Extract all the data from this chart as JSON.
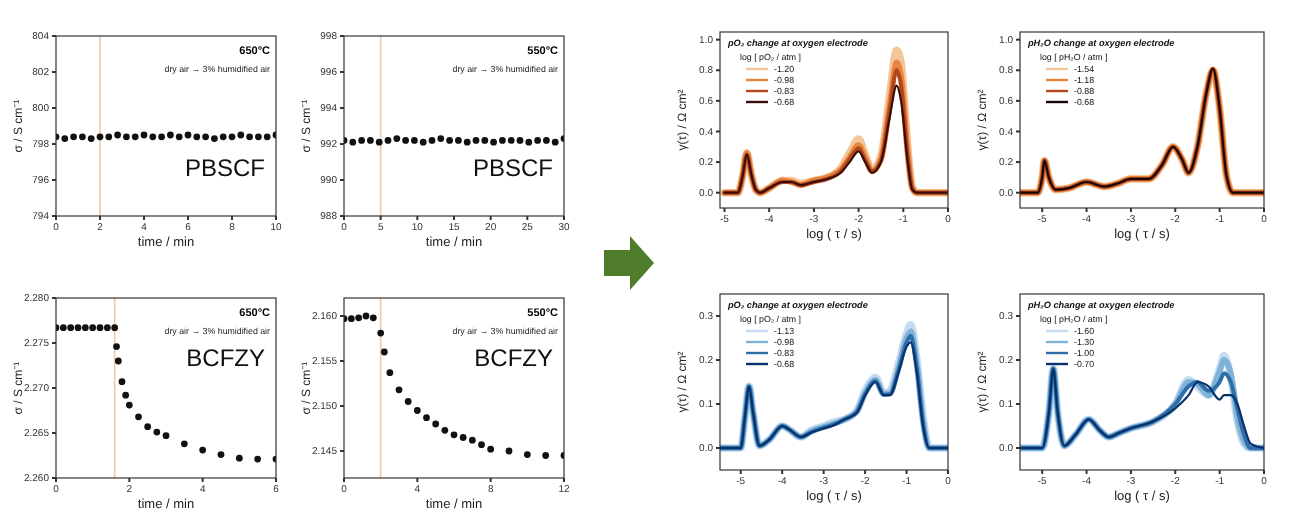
{
  "chart_data": [
    {
      "type": "scatter",
      "xlabel": "time / min",
      "ylabel": "σ / S cm⁻¹",
      "xlim": [
        0,
        10
      ],
      "xticks": [
        0,
        2,
        4,
        6,
        8,
        10
      ],
      "ylim": [
        794,
        804
      ],
      "yticks": [
        794,
        796,
        798,
        800,
        802,
        804
      ],
      "marker": "circle",
      "annotations": [
        "650°C",
        "dry air → 3% humidified air",
        "PBSCF"
      ],
      "ref_lines": [
        {
          "axis": "x",
          "value": 2,
          "color": "#f0c8a0"
        }
      ],
      "x": [
        0,
        0.4,
        0.8,
        1.2,
        1.6,
        2,
        2.4,
        2.8,
        3.2,
        3.6,
        4,
        4.4,
        4.8,
        5.2,
        5.6,
        6,
        6.4,
        6.8,
        7.2,
        7.6,
        8,
        8.4,
        8.8,
        9.2,
        9.6,
        10
      ],
      "series": [
        {
          "color": "#111111",
          "values": [
            798.4,
            798.3,
            798.4,
            798.4,
            798.3,
            798.4,
            798.4,
            798.5,
            798.4,
            798.4,
            798.5,
            798.4,
            798.4,
            798.5,
            798.4,
            798.5,
            798.4,
            798.4,
            798.3,
            798.4,
            798.4,
            798.5,
            798.4,
            798.4,
            798.4,
            798.5
          ]
        }
      ]
    },
    {
      "type": "scatter",
      "xlabel": "time / min",
      "ylabel": "σ / S cm⁻¹",
      "xlim": [
        0,
        30
      ],
      "xticks": [
        0,
        5,
        10,
        15,
        20,
        25,
        30
      ],
      "ylim": [
        988,
        998
      ],
      "yticks": [
        988,
        990,
        992,
        994,
        996,
        998
      ],
      "marker": "circle",
      "annotations": [
        "550°C",
        "dry air → 3% humidified air",
        "PBSCF"
      ],
      "ref_lines": [
        {
          "axis": "x",
          "value": 5,
          "color": "#f0c8a0"
        }
      ],
      "x": [
        0,
        1.2,
        2.4,
        3.6,
        4.8,
        6,
        7.2,
        8.4,
        9.6,
        10.8,
        12,
        13.2,
        14.4,
        15.6,
        16.8,
        18,
        19.2,
        20.4,
        21.6,
        22.8,
        24,
        25.2,
        26.4,
        27.6,
        28.8,
        30
      ],
      "series": [
        {
          "color": "#111111",
          "values": [
            992.2,
            992.1,
            992.2,
            992.2,
            992.1,
            992.2,
            992.3,
            992.2,
            992.2,
            992.1,
            992.2,
            992.3,
            992.2,
            992.2,
            992.1,
            992.2,
            992.2,
            992.1,
            992.2,
            992.2,
            992.2,
            992.1,
            992.2,
            992.2,
            992.1,
            992.3
          ]
        }
      ]
    },
    {
      "type": "line",
      "title": "pO₂ change at oxygen electrode",
      "xlabel": "log ( τ / s)",
      "ylabel": "γ(τ) / Ω cm²",
      "xlim": [
        -5.1,
        0
      ],
      "xticks": [
        -5,
        -4,
        -3,
        -2,
        -1,
        0
      ],
      "ylim": [
        -0.1,
        1.05
      ],
      "yticks": [
        {
          "value": 0,
          "label": "0.0"
        },
        {
          "value": 0.2,
          "label": "0.2"
        },
        {
          "value": 0.4,
          "label": "0.4"
        },
        {
          "value": 0.6,
          "label": "0.6"
        },
        {
          "value": 0.8,
          "label": "0.8"
        },
        {
          "value": 1,
          "label": "1.0"
        }
      ],
      "legend": "top left",
      "legend_title": "log [ pO₂ / atm ]",
      "x": [
        -5,
        -4.7,
        -4.6,
        -4.5,
        -4.4,
        -4.3,
        -4.2,
        -4,
        -3.7,
        -3.5,
        -3.3,
        -3,
        -2.7,
        -2.4,
        -2.2,
        -2,
        -1.85,
        -1.7,
        -1.5,
        -1.3,
        -1.15,
        -1.05,
        -0.9,
        -0.8,
        -0.7,
        0
      ],
      "series": [
        {
          "name": "-1.20",
          "color": "#f5c59a",
          "values": [
            0,
            0,
            0.1,
            0.26,
            0.12,
            0.02,
            0,
            0.03,
            0.08,
            0.08,
            0.06,
            0.08,
            0.1,
            0.16,
            0.26,
            0.35,
            0.25,
            0.15,
            0.24,
            0.65,
            0.93,
            0.85,
            0.3,
            0.04,
            0,
            0
          ]
        },
        {
          "name": "-0.98",
          "color": "#e8843c",
          "values": [
            0,
            0,
            0.1,
            0.26,
            0.12,
            0.02,
            0,
            0.03,
            0.08,
            0.07,
            0.05,
            0.08,
            0.1,
            0.15,
            0.23,
            0.31,
            0.23,
            0.14,
            0.22,
            0.58,
            0.85,
            0.76,
            0.26,
            0.03,
            0,
            0
          ]
        },
        {
          "name": "-0.83",
          "color": "#b0461c",
          "values": [
            0,
            0,
            0.1,
            0.25,
            0.12,
            0.02,
            0,
            0.03,
            0.07,
            0.07,
            0.05,
            0.07,
            0.09,
            0.14,
            0.22,
            0.29,
            0.21,
            0.14,
            0.21,
            0.55,
            0.8,
            0.7,
            0.23,
            0.03,
            0,
            0
          ]
        },
        {
          "name": "-0.68",
          "color": "#3a0c0c",
          "values": [
            0,
            0,
            0.1,
            0.25,
            0.12,
            0.02,
            0,
            0.03,
            0.07,
            0.07,
            0.05,
            0.07,
            0.09,
            0.13,
            0.2,
            0.27,
            0.2,
            0.13,
            0.2,
            0.5,
            0.7,
            0.6,
            0.2,
            0.02,
            0,
            0
          ]
        }
      ]
    },
    {
      "type": "line",
      "title": "pH₂O change at oxygen electrode",
      "xlabel": "log ( τ / s)",
      "ylabel": "γ(τ) / Ω cm²",
      "xlim": [
        -5.5,
        0
      ],
      "xticks": [
        -5,
        -4,
        -3,
        -2,
        -1,
        0
      ],
      "ylim": [
        -0.1,
        1.05
      ],
      "yticks": [
        {
          "value": 0,
          "label": "0.0"
        },
        {
          "value": 0.2,
          "label": "0.2"
        },
        {
          "value": 0.4,
          "label": "0.4"
        },
        {
          "value": 0.6,
          "label": "0.6"
        },
        {
          "value": 0.8,
          "label": "0.8"
        },
        {
          "value": 1,
          "label": "1.0"
        }
      ],
      "legend": "top left",
      "legend_title": "log [ pH₂O / atm ]",
      "x": [
        -5.5,
        -5.1,
        -5,
        -4.95,
        -4.85,
        -4.7,
        -4.4,
        -4,
        -3.6,
        -3.3,
        -3,
        -2.6,
        -2.3,
        -2.05,
        -1.85,
        -1.7,
        -1.5,
        -1.3,
        -1.15,
        -1,
        -0.85,
        -0.7,
        0
      ],
      "series": [
        {
          "name": "-1.54",
          "color": "#f5c59a",
          "values": [
            0,
            0,
            0.1,
            0.21,
            0.1,
            0.02,
            0.03,
            0.07,
            0.04,
            0.06,
            0.09,
            0.09,
            0.18,
            0.3,
            0.22,
            0.13,
            0.3,
            0.65,
            0.8,
            0.55,
            0.12,
            0,
            0
          ]
        },
        {
          "name": "-1.18",
          "color": "#e8843c",
          "values": [
            0,
            0,
            0.1,
            0.21,
            0.1,
            0.02,
            0.03,
            0.07,
            0.04,
            0.06,
            0.09,
            0.09,
            0.18,
            0.3,
            0.22,
            0.13,
            0.3,
            0.65,
            0.8,
            0.55,
            0.12,
            0,
            0
          ]
        },
        {
          "name": "-0.88",
          "color": "#b0461c",
          "values": [
            0,
            0,
            0.1,
            0.21,
            0.1,
            0.02,
            0.03,
            0.07,
            0.04,
            0.06,
            0.09,
            0.09,
            0.18,
            0.3,
            0.22,
            0.13,
            0.3,
            0.65,
            0.81,
            0.55,
            0.12,
            0,
            0
          ]
        },
        {
          "name": "-0.68",
          "color": "#1a0606",
          "values": [
            0,
            0,
            0.1,
            0.21,
            0.1,
            0.02,
            0.03,
            0.07,
            0.04,
            0.06,
            0.09,
            0.09,
            0.18,
            0.3,
            0.22,
            0.13,
            0.3,
            0.65,
            0.81,
            0.55,
            0.12,
            0,
            0
          ]
        }
      ]
    },
    {
      "type": "scatter",
      "xlabel": "time / min",
      "ylabel": "σ / S cm⁻¹",
      "xlim": [
        0,
        6
      ],
      "xticks": [
        0,
        2,
        4,
        6
      ],
      "ylim": [
        2.26,
        2.28
      ],
      "yticks": [
        {
          "value": 2.26,
          "label": "2.260"
        },
        {
          "value": 2.265,
          "label": "2.265"
        },
        {
          "value": 2.27,
          "label": "2.270"
        },
        {
          "value": 2.275,
          "label": "2.275"
        },
        {
          "value": 2.28,
          "label": "2.280"
        }
      ],
      "marker": "circle",
      "annotations": [
        "650°C",
        "dry air → 3% humidified air",
        "BCFZY"
      ],
      "ref_lines": [
        {
          "axis": "x",
          "value": 1.6,
          "color": "#f0c8a0"
        }
      ],
      "x": [
        0,
        0.2,
        0.4,
        0.6,
        0.8,
        1,
        1.2,
        1.4,
        1.6,
        1.65,
        1.7,
        1.8,
        1.9,
        2,
        2.25,
        2.5,
        2.75,
        3,
        3.5,
        4,
        4.5,
        5,
        5.5,
        6
      ],
      "series": [
        {
          "color": "#111111",
          "values": [
            2.2767,
            2.2767,
            2.2767,
            2.2767,
            2.2767,
            2.2767,
            2.2767,
            2.2767,
            2.2767,
            2.2746,
            2.273,
            2.2707,
            2.2692,
            2.2681,
            2.2668,
            2.2657,
            2.2651,
            2.2647,
            2.2638,
            2.2631,
            2.2626,
            2.2622,
            2.2621,
            2.2621
          ]
        }
      ]
    },
    {
      "type": "scatter",
      "xlabel": "time / min",
      "ylabel": "σ / S cm⁻¹",
      "xlim": [
        0,
        12
      ],
      "xticks": [
        0,
        4,
        8,
        12
      ],
      "ylim": [
        2.142,
        2.162
      ],
      "yticks": [
        {
          "value": 2.145,
          "label": "2.145"
        },
        {
          "value": 2.15,
          "label": "2.150"
        },
        {
          "value": 2.155,
          "label": "2.155"
        },
        {
          "value": 2.16,
          "label": "2.160"
        }
      ],
      "marker": "circle",
      "annotations": [
        "550°C",
        "dry air → 3% humidified air",
        "BCFZY"
      ],
      "ref_lines": [
        {
          "axis": "x",
          "value": 2,
          "color": "#f0c8a0"
        }
      ],
      "x": [
        0,
        0.4,
        0.8,
        1.2,
        1.6,
        2,
        2.2,
        2.5,
        3,
        3.5,
        4,
        4.5,
        5,
        5.5,
        6,
        6.5,
        7,
        7.5,
        8,
        9,
        10,
        11,
        12
      ],
      "series": [
        {
          "color": "#111111",
          "values": [
            2.1597,
            2.1597,
            2.1598,
            2.16,
            2.1598,
            2.1581,
            2.156,
            2.1537,
            2.1518,
            2.1505,
            2.1495,
            2.1487,
            2.148,
            2.1473,
            2.1468,
            2.1465,
            2.1462,
            2.1457,
            2.1452,
            2.145,
            2.1446,
            2.1445,
            2.1445
          ]
        }
      ]
    },
    {
      "type": "line",
      "title": "pO₂ change at oxygen electrode",
      "xlabel": "log ( τ / s)",
      "ylabel": "γ(τ) / Ω cm²",
      "xlim": [
        -5.5,
        0
      ],
      "xticks": [
        -5,
        -4,
        -3,
        -2,
        -1,
        0
      ],
      "ylim": [
        -0.05,
        0.35
      ],
      "yticks": [
        {
          "value": 0,
          "label": "0.0"
        },
        {
          "value": 0.1,
          "label": "0.1"
        },
        {
          "value": 0.2,
          "label": "0.2"
        },
        {
          "value": 0.3,
          "label": "0.3"
        }
      ],
      "legend": "top left",
      "legend_title": "log [ pO₂ / atm ]",
      "x": [
        -5.5,
        -5,
        -4.9,
        -4.8,
        -4.7,
        -4.55,
        -4.3,
        -4,
        -3.8,
        -3.55,
        -3.3,
        -3,
        -2.8,
        -2.5,
        -2.2,
        -2,
        -1.75,
        -1.55,
        -1.4,
        -1.2,
        -1,
        -0.9,
        -0.75,
        -0.6,
        -0.45,
        0
      ],
      "series": [
        {
          "name": "-1.13",
          "color": "#c6dbef",
          "values": [
            0,
            0,
            0.07,
            0.14,
            0.08,
            0.005,
            0.02,
            0.05,
            0.04,
            0.025,
            0.04,
            0.05,
            0.058,
            0.065,
            0.085,
            0.13,
            0.16,
            0.125,
            0.13,
            0.19,
            0.26,
            0.28,
            0.2,
            0.07,
            0,
            0
          ]
        },
        {
          "name": "-0.98",
          "color": "#7fb2d8",
          "values": [
            0,
            0,
            0.07,
            0.14,
            0.08,
            0.005,
            0.02,
            0.05,
            0.04,
            0.025,
            0.038,
            0.048,
            0.054,
            0.065,
            0.083,
            0.125,
            0.155,
            0.123,
            0.125,
            0.18,
            0.25,
            0.265,
            0.19,
            0.06,
            0,
            0
          ]
        },
        {
          "name": "-0.83",
          "color": "#2f6ea8",
          "values": [
            0,
            0,
            0.07,
            0.14,
            0.08,
            0.005,
            0.02,
            0.05,
            0.04,
            0.025,
            0.036,
            0.046,
            0.052,
            0.065,
            0.082,
            0.122,
            0.152,
            0.121,
            0.122,
            0.175,
            0.24,
            0.255,
            0.18,
            0.055,
            0,
            0
          ]
        },
        {
          "name": "-0.68",
          "color": "#08306b",
          "values": [
            0,
            0,
            0.07,
            0.14,
            0.08,
            0.005,
            0.02,
            0.05,
            0.04,
            0.025,
            0.035,
            0.045,
            0.05,
            0.065,
            0.08,
            0.12,
            0.15,
            0.12,
            0.12,
            0.17,
            0.23,
            0.24,
            0.17,
            0.05,
            0,
            0
          ]
        }
      ]
    },
    {
      "type": "line",
      "title": "pH₂O change at oxygen electrode",
      "xlabel": "log ( τ / s)",
      "ylabel": "γ(τ) / Ω cm²",
      "xlim": [
        -5.5,
        0
      ],
      "xticks": [
        -5,
        -4,
        -3,
        -2,
        -1,
        0
      ],
      "ylim": [
        -0.05,
        0.35
      ],
      "yticks": [
        {
          "value": 0,
          "label": "0.0"
        },
        {
          "value": 0.1,
          "label": "0.1"
        },
        {
          "value": 0.2,
          "label": "0.2"
        },
        {
          "value": 0.3,
          "label": "0.3"
        }
      ],
      "legend": "top left",
      "legend_title": "log [ pH₂O / atm ]",
      "x": [
        -5.5,
        -5,
        -4.85,
        -4.75,
        -4.65,
        -4.5,
        -4.25,
        -3.95,
        -3.7,
        -3.5,
        -3.25,
        -3,
        -2.5,
        -2,
        -1.7,
        -1.5,
        -1.25,
        -1,
        -0.9,
        -0.75,
        -0.6,
        -0.45,
        -0.3,
        0
      ],
      "series": [
        {
          "name": "-1.60",
          "color": "#c6dbef",
          "values": [
            0,
            0,
            0.08,
            0.18,
            0.08,
            0.005,
            0.03,
            0.065,
            0.04,
            0.025,
            0.035,
            0.045,
            0.06,
            0.1,
            0.155,
            0.14,
            0.12,
            0.18,
            0.21,
            0.16,
            0.06,
            0.01,
            0,
            0
          ]
        },
        {
          "name": "-1.30",
          "color": "#7fb2d8",
          "values": [
            0,
            0,
            0.08,
            0.18,
            0.08,
            0.005,
            0.03,
            0.065,
            0.04,
            0.025,
            0.035,
            0.045,
            0.06,
            0.1,
            0.15,
            0.145,
            0.12,
            0.175,
            0.2,
            0.17,
            0.07,
            0.015,
            0,
            0
          ]
        },
        {
          "name": "-1.00",
          "color": "#2f6ea8",
          "values": [
            0,
            0,
            0.08,
            0.18,
            0.08,
            0.005,
            0.03,
            0.065,
            0.04,
            0.025,
            0.035,
            0.045,
            0.06,
            0.1,
            0.14,
            0.15,
            0.13,
            0.15,
            0.17,
            0.15,
            0.09,
            0.03,
            0,
            0
          ]
        },
        {
          "name": "-0.70",
          "color": "#08306b",
          "values": [
            0,
            0,
            0.08,
            0.18,
            0.08,
            0.005,
            0.03,
            0.065,
            0.04,
            0.025,
            0.035,
            0.045,
            0.06,
            0.09,
            0.12,
            0.15,
            0.14,
            0.11,
            0.12,
            0.12,
            0.1,
            0.05,
            0.01,
            0
          ]
        }
      ]
    }
  ]
}
